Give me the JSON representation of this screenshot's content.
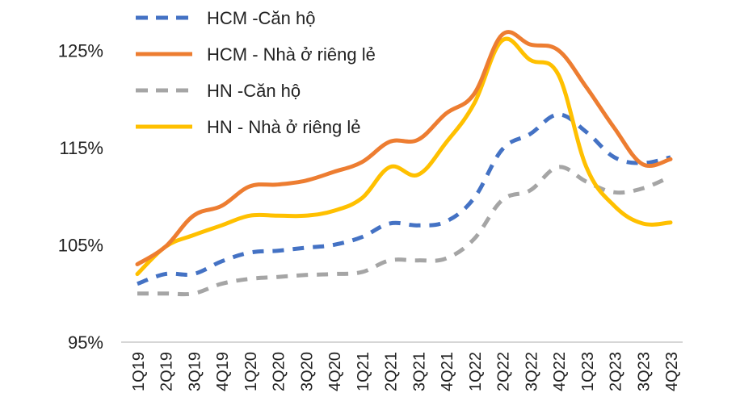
{
  "chart_data": {
    "type": "line",
    "title": "",
    "xlabel": "",
    "ylabel": "",
    "categories": [
      "1Q19",
      "2Q19",
      "3Q19",
      "4Q19",
      "1Q20",
      "2Q20",
      "3Q20",
      "4Q20",
      "1Q21",
      "2Q21",
      "3Q21",
      "4Q21",
      "1Q22",
      "2Q22",
      "3Q22",
      "4Q22",
      "1Q23",
      "2Q23",
      "3Q23",
      "4Q23"
    ],
    "ylim": [
      95,
      130
    ],
    "yticks": [
      95,
      105,
      115,
      125
    ],
    "ytick_labels": [
      "95%",
      "105%",
      "115%",
      "125%"
    ],
    "grid": false,
    "legend_position": "top-left",
    "series": [
      {
        "name": "HCM -Căn hộ",
        "color": "#4472c4",
        "dash": true,
        "values": [
          101.0,
          102.0,
          102.0,
          103.3,
          104.2,
          104.4,
          104.7,
          105.0,
          105.8,
          107.2,
          107.0,
          107.4,
          109.8,
          114.8,
          116.4,
          118.4,
          116.6,
          114.0,
          113.4,
          114.0
        ]
      },
      {
        "name": "HCM - Nhà ở riêng lẻ",
        "color": "#ed7d31",
        "dash": false,
        "values": [
          103.0,
          104.8,
          108.0,
          109.0,
          111.0,
          111.2,
          111.6,
          112.5,
          113.5,
          115.6,
          115.8,
          118.5,
          120.5,
          126.6,
          125.6,
          125.0,
          121.2,
          117.0,
          113.3,
          113.8
        ]
      },
      {
        "name": "HN -Căn hộ",
        "color": "#a5a5a5",
        "dash": true,
        "values": [
          100.0,
          100.0,
          100.0,
          101.0,
          101.5,
          101.7,
          101.9,
          102.0,
          102.2,
          103.4,
          103.4,
          103.6,
          105.6,
          109.6,
          110.6,
          113.0,
          111.5,
          110.4,
          110.8,
          112.0
        ]
      },
      {
        "name": "HN - Nhà ở riêng lẻ",
        "color": "#ffc000",
        "dash": false,
        "values": [
          102.0,
          104.8,
          106.0,
          107.0,
          108.0,
          108.0,
          108.0,
          108.5,
          109.8,
          113.0,
          112.2,
          115.5,
          119.5,
          126.0,
          124.0,
          122.5,
          113.0,
          109.0,
          107.2,
          107.3
        ]
      }
    ]
  }
}
